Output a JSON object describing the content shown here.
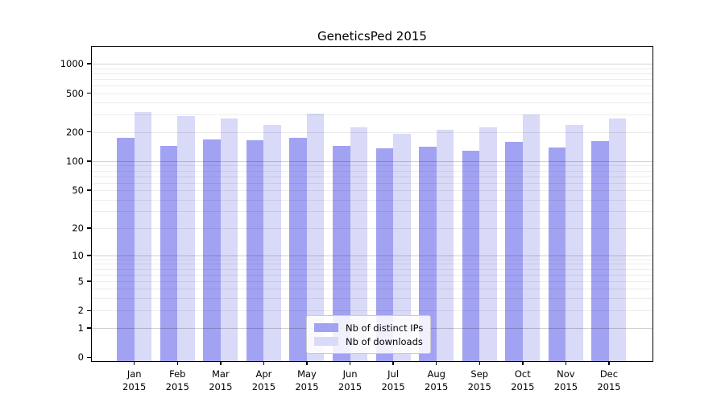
{
  "chart_data": {
    "type": "bar",
    "title": "GeneticsPed 2015",
    "xlabel": "",
    "ylabel": "",
    "yscale": "log1p",
    "yticks": [
      0,
      1,
      2,
      5,
      10,
      20,
      50,
      100,
      200,
      500,
      1000
    ],
    "ylim": [
      0,
      1490
    ],
    "grid": "horizontal major+minor",
    "legend_position": "inside-bottom-center",
    "categories": [
      {
        "month": "Jan",
        "year": "2015"
      },
      {
        "month": "Feb",
        "year": "2015"
      },
      {
        "month": "Mar",
        "year": "2015"
      },
      {
        "month": "Apr",
        "year": "2015"
      },
      {
        "month": "May",
        "year": "2015"
      },
      {
        "month": "Jun",
        "year": "2015"
      },
      {
        "month": "Jul",
        "year": "2015"
      },
      {
        "month": "Aug",
        "year": "2015"
      },
      {
        "month": "Sep",
        "year": "2015"
      },
      {
        "month": "Oct",
        "year": "2015"
      },
      {
        "month": "Nov",
        "year": "2015"
      },
      {
        "month": "Dec",
        "year": "2015"
      }
    ],
    "series": [
      {
        "name": "Nb of distinct IPs",
        "color": "#a2a2f2",
        "values": [
          174,
          145,
          168,
          163,
          174,
          144,
          135,
          140,
          129,
          158,
          138,
          161
        ]
      },
      {
        "name": "Nb of downloads",
        "color": "#d9d9f8",
        "values": [
          320,
          290,
          275,
          238,
          308,
          222,
          191,
          210,
          224,
          305,
          236,
          276
        ]
      }
    ]
  }
}
